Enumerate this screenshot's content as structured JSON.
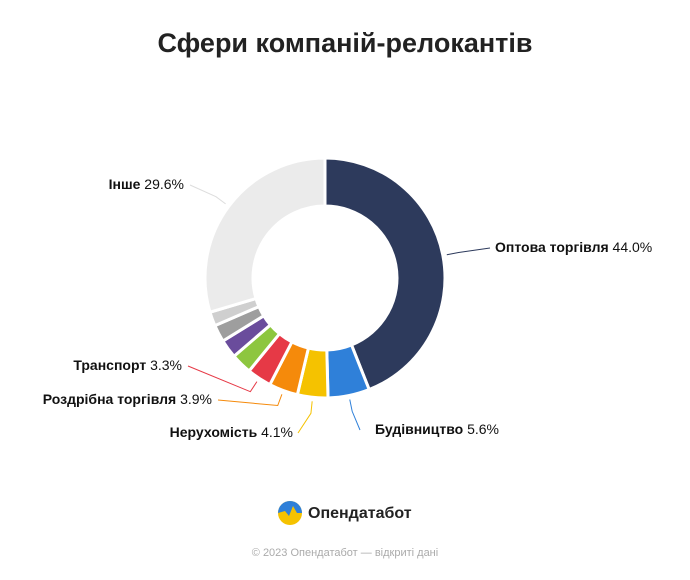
{
  "chart_data": {
    "type": "donut",
    "title": "Сфери компаній-релокантів",
    "categories": [
      "Оптова торгівля",
      "Будівництво",
      "Нерухомість",
      "Роздрібна торгівля",
      "Транспорт",
      null,
      null,
      null,
      null,
      "Інше"
    ],
    "values": [
      44.0,
      5.6,
      4.1,
      3.9,
      3.3,
      2.8,
      2.5,
      2.3,
      1.9,
      29.6
    ],
    "value_labels": [
      "44.0%",
      "5.6%",
      "4.1%",
      "3.9%",
      "3.3%",
      null,
      null,
      null,
      null,
      "29.6%"
    ],
    "colors": [
      "#2d3a5c",
      "#2f80d9",
      "#f5c200",
      "#f58a0b",
      "#e63946",
      "#8dc63f",
      "#6a4c9c",
      "#9e9e9e",
      "#cfcfcf",
      "#ebebeb"
    ]
  },
  "brand": "Опендатабот",
  "footer": "© 2023 Опендатабот — відкриті дані"
}
